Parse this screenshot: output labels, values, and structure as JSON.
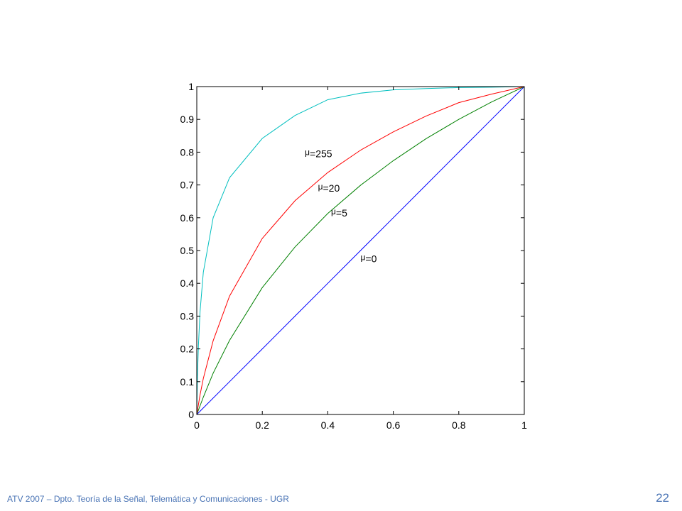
{
  "footer": {
    "text": "ATV 2007 – Dpto. Teoría de la Señal, Telemática y Comunicaciones - UGR",
    "page_number": "22"
  },
  "chart_data": {
    "type": "line",
    "title": "",
    "xlabel": "",
    "ylabel": "",
    "xlim": [
      0,
      1
    ],
    "ylim": [
      0,
      1
    ],
    "grid": false,
    "x_ticks": [
      "0",
      "0.2",
      "0.4",
      "0.6",
      "0.8",
      "1"
    ],
    "y_ticks": [
      "0",
      "0.1",
      "0.2",
      "0.3",
      "0.4",
      "0.5",
      "0.6",
      "0.7",
      "0.8",
      "0.9",
      "1"
    ],
    "series": [
      {
        "mu": 0,
        "color": "#0000ff",
        "x": [
          0,
          0.1,
          0.2,
          0.3,
          0.4,
          0.5,
          0.6,
          0.7,
          0.8,
          0.9,
          1
        ],
        "values": [
          0,
          0.1,
          0.2,
          0.3,
          0.4,
          0.5,
          0.6,
          0.7,
          0.8,
          0.9,
          1
        ]
      },
      {
        "mu": 5,
        "color": "#008000",
        "x": [
          0,
          0.02,
          0.05,
          0.1,
          0.2,
          0.3,
          0.4,
          0.5,
          0.6,
          0.7,
          0.8,
          0.9,
          1
        ],
        "values": [
          0,
          0.053,
          0.126,
          0.226,
          0.387,
          0.511,
          0.613,
          0.699,
          0.774,
          0.841,
          0.9,
          0.953,
          1
        ]
      },
      {
        "mu": 20,
        "color": "#ff0000",
        "x": [
          0,
          0.01,
          0.02,
          0.05,
          0.1,
          0.2,
          0.3,
          0.4,
          0.5,
          0.6,
          0.7,
          0.8,
          0.9,
          1
        ],
        "values": [
          0,
          0.06,
          0.11,
          0.225,
          0.361,
          0.537,
          0.652,
          0.738,
          0.806,
          0.862,
          0.91,
          0.951,
          0.977,
          1
        ]
      },
      {
        "mu": 255,
        "color": "#00bfbf",
        "x": [
          0,
          0.002,
          0.005,
          0.01,
          0.02,
          0.05,
          0.1,
          0.2,
          0.3,
          0.4,
          0.5,
          0.6,
          0.7,
          0.8,
          0.9,
          1
        ],
        "values": [
          0,
          0.116,
          0.21,
          0.314,
          0.434,
          0.6,
          0.722,
          0.842,
          0.912,
          0.96,
          0.98,
          0.99,
          0.994,
          0.997,
          0.998,
          1
        ]
      }
    ],
    "annotations": [
      {
        "greek": "μ",
        "label": "=255",
        "x": 0.33,
        "y": 0.795
      },
      {
        "greek": "μ",
        "label": "=20",
        "x": 0.37,
        "y": 0.69
      },
      {
        "greek": "μ",
        "label": "=5",
        "x": 0.41,
        "y": 0.615
      },
      {
        "greek": "μ",
        "label": "=0",
        "x": 0.5,
        "y": 0.475
      }
    ]
  }
}
